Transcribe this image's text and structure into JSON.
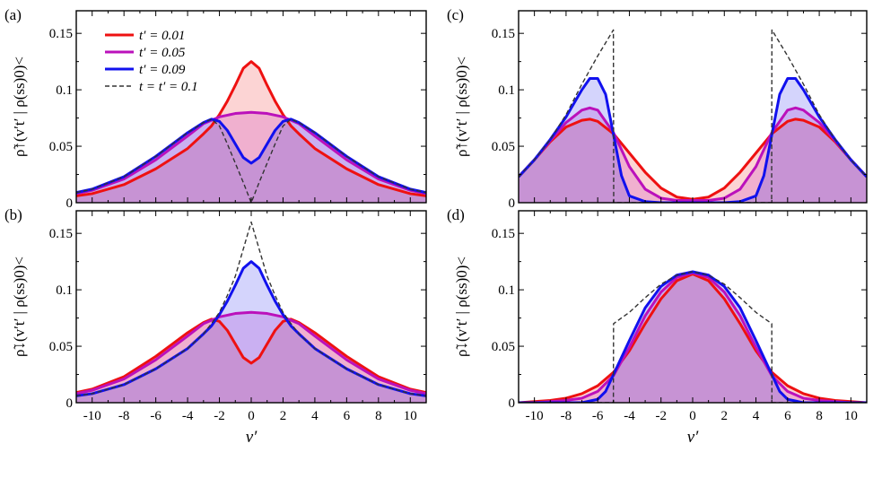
{
  "chart_data": [
    {
      "panel": "(a)",
      "type": "area",
      "ylabel": "ρ̃↑(v′t′ | ρ(ss)0)<",
      "xlabel": "",
      "xlim": [
        -11,
        11
      ],
      "ylim": [
        0,
        0.17
      ],
      "xticks": [],
      "yticks": [
        "0",
        "0.05",
        "0.1",
        "0.15"
      ],
      "legend_placement": "top-left",
      "series": [
        {
          "name": "t′ = 0.01",
          "color": "#ee1111",
          "x": [
            -11,
            -10,
            -8,
            -6,
            -4,
            -3,
            -2.5,
            -2,
            -1.5,
            -1,
            -0.5,
            0,
            0.5,
            1,
            1.5,
            2,
            2.5,
            3,
            4,
            6,
            8,
            10,
            11
          ],
          "y": [
            0.006,
            0.008,
            0.016,
            0.03,
            0.048,
            0.061,
            0.068,
            0.078,
            0.09,
            0.104,
            0.119,
            0.125,
            0.119,
            0.104,
            0.09,
            0.078,
            0.068,
            0.061,
            0.048,
            0.03,
            0.016,
            0.008,
            0.006
          ]
        },
        {
          "name": "t′ = 0.05",
          "color": "#bb11bb",
          "x": [
            -11,
            -10,
            -8,
            -6,
            -4,
            -3,
            -2,
            -1,
            0,
            1,
            2,
            3,
            4,
            6,
            8,
            10,
            11
          ],
          "y": [
            0.008,
            0.011,
            0.021,
            0.038,
            0.059,
            0.07,
            0.076,
            0.079,
            0.08,
            0.079,
            0.076,
            0.07,
            0.059,
            0.038,
            0.021,
            0.011,
            0.008
          ]
        },
        {
          "name": "t′ = 0.09",
          "color": "#1111ee",
          "x": [
            -11,
            -10,
            -8,
            -6,
            -4,
            -3,
            -2.5,
            -2,
            -1.5,
            -1,
            -0.5,
            0,
            0.5,
            1,
            1.5,
            2,
            2.5,
            3,
            4,
            6,
            8,
            10,
            11
          ],
          "y": [
            0.009,
            0.012,
            0.023,
            0.041,
            0.062,
            0.071,
            0.074,
            0.072,
            0.064,
            0.052,
            0.04,
            0.035,
            0.04,
            0.052,
            0.064,
            0.072,
            0.074,
            0.071,
            0.062,
            0.041,
            0.023,
            0.012,
            0.009
          ]
        },
        {
          "name": "t = t′ = 0.1",
          "color": "#333333",
          "dashed": true,
          "x": [
            -11,
            -10,
            -8,
            -6,
            -4,
            -3,
            -2.5,
            -2,
            -1.5,
            -1,
            -0.5,
            0,
            0.5,
            1,
            1.5,
            2,
            2.5,
            3,
            4,
            6,
            8,
            10,
            11
          ],
          "y": [
            0.009,
            0.012,
            0.023,
            0.041,
            0.062,
            0.071,
            0.074,
            0.068,
            0.052,
            0.035,
            0.018,
            0.0,
            0.018,
            0.035,
            0.052,
            0.068,
            0.074,
            0.071,
            0.062,
            0.041,
            0.023,
            0.012,
            0.009
          ]
        }
      ]
    },
    {
      "panel": "(b)",
      "type": "area",
      "ylabel": "ρ̃↓(v′t′ | ρ(ss)0)<",
      "xlabel": "v′",
      "xlim": [
        -11,
        11
      ],
      "ylim": [
        0,
        0.17
      ],
      "xticks": [
        "-10",
        "-8",
        "-6",
        "-4",
        "-2",
        "0",
        "2",
        "4",
        "6",
        "8",
        "10"
      ],
      "yticks": [
        "0",
        "0.05",
        "0.1",
        "0.15"
      ],
      "series": [
        {
          "name": "t′ = 0.01",
          "color": "#ee1111",
          "x": [
            -11,
            -10,
            -8,
            -6,
            -4,
            -3,
            -2.5,
            -2,
            -1.5,
            -1,
            -0.5,
            0,
            0.5,
            1,
            1.5,
            2,
            2.5,
            3,
            4,
            6,
            8,
            10,
            11
          ],
          "y": [
            0.009,
            0.012,
            0.023,
            0.041,
            0.062,
            0.071,
            0.074,
            0.072,
            0.064,
            0.052,
            0.04,
            0.035,
            0.04,
            0.052,
            0.064,
            0.072,
            0.074,
            0.071,
            0.062,
            0.041,
            0.023,
            0.012,
            0.009
          ]
        },
        {
          "name": "t′ = 0.05",
          "color": "#bb11bb",
          "x": [
            -11,
            -10,
            -8,
            -6,
            -4,
            -3,
            -2,
            -1,
            0,
            1,
            2,
            3,
            4,
            6,
            8,
            10,
            11
          ],
          "y": [
            0.008,
            0.011,
            0.021,
            0.038,
            0.059,
            0.07,
            0.076,
            0.079,
            0.08,
            0.079,
            0.076,
            0.07,
            0.059,
            0.038,
            0.021,
            0.011,
            0.008
          ]
        },
        {
          "name": "t′ = 0.09",
          "color": "#1111ee",
          "x": [
            -11,
            -10,
            -8,
            -6,
            -4,
            -3,
            -2.5,
            -2,
            -1.5,
            -1,
            -0.5,
            0,
            0.5,
            1,
            1.5,
            2,
            2.5,
            3,
            4,
            6,
            8,
            10,
            11
          ],
          "y": [
            0.006,
            0.008,
            0.016,
            0.03,
            0.048,
            0.061,
            0.068,
            0.078,
            0.09,
            0.104,
            0.119,
            0.125,
            0.119,
            0.104,
            0.09,
            0.078,
            0.068,
            0.061,
            0.048,
            0.03,
            0.016,
            0.008,
            0.006
          ]
        },
        {
          "name": "t = t′ = 0.1",
          "color": "#333333",
          "dashed": true,
          "x": [
            -11,
            -10,
            -8,
            -6,
            -4,
            -3,
            -2.5,
            -2,
            -1.5,
            -1,
            -0.5,
            0,
            0.5,
            1,
            1.5,
            2,
            2.5,
            3,
            4,
            6,
            8,
            10,
            11
          ],
          "y": [
            0.006,
            0.008,
            0.016,
            0.03,
            0.048,
            0.061,
            0.07,
            0.08,
            0.095,
            0.112,
            0.136,
            0.16,
            0.136,
            0.112,
            0.095,
            0.08,
            0.07,
            0.061,
            0.048,
            0.03,
            0.016,
            0.008,
            0.006
          ]
        }
      ]
    },
    {
      "panel": "(c)",
      "type": "area",
      "ylabel": "ρ̃↑(v′t′ | ρ(ss)0)<",
      "xlabel": "",
      "xlim": [
        -11,
        11
      ],
      "ylim": [
        0,
        0.17
      ],
      "xticks": [],
      "yticks": [
        "0",
        "0.05",
        "0.1",
        "0.15"
      ],
      "series": [
        {
          "name": "t′ = 0.01",
          "color": "#ee1111",
          "x": [
            -11,
            -10,
            -9,
            -8,
            -7,
            -6.5,
            -6,
            -5,
            -4,
            -3,
            -2,
            -1,
            0,
            1,
            2,
            3,
            4,
            5,
            6,
            6.5,
            7,
            8,
            9,
            10,
            11
          ],
          "y": [
            0.023,
            0.038,
            0.054,
            0.067,
            0.073,
            0.074,
            0.072,
            0.061,
            0.044,
            0.027,
            0.013,
            0.005,
            0.003,
            0.005,
            0.013,
            0.027,
            0.044,
            0.061,
            0.072,
            0.074,
            0.073,
            0.067,
            0.054,
            0.038,
            0.023
          ]
        },
        {
          "name": "t′ = 0.05",
          "color": "#bb11bb",
          "x": [
            -11,
            -10,
            -9,
            -8,
            -7,
            -6.5,
            -6,
            -5,
            -4,
            -3,
            -2,
            -1,
            0,
            1,
            2,
            3,
            4,
            5,
            6,
            6.5,
            7,
            8,
            9,
            10,
            11
          ],
          "y": [
            0.023,
            0.038,
            0.055,
            0.071,
            0.082,
            0.084,
            0.082,
            0.062,
            0.032,
            0.012,
            0.004,
            0.002,
            0.002,
            0.002,
            0.004,
            0.012,
            0.032,
            0.062,
            0.082,
            0.084,
            0.082,
            0.071,
            0.055,
            0.038,
            0.023
          ]
        },
        {
          "name": "t′ = 0.09",
          "color": "#1111ee",
          "x": [
            -11,
            -10,
            -9,
            -8,
            -7,
            -6.5,
            -6,
            -5.5,
            -5,
            -4.5,
            -4,
            -3,
            -2,
            0,
            2,
            3,
            4,
            4.5,
            5,
            5.5,
            6,
            6.5,
            7,
            8,
            9,
            10,
            11
          ],
          "y": [
            0.023,
            0.038,
            0.056,
            0.076,
            0.1,
            0.11,
            0.11,
            0.096,
            0.06,
            0.024,
            0.006,
            0.001,
            0.0,
            0.0,
            0.0,
            0.001,
            0.006,
            0.024,
            0.06,
            0.096,
            0.11,
            0.11,
            0.1,
            0.076,
            0.056,
            0.038,
            0.023
          ]
        },
        {
          "name": "t = t′ = 0.1",
          "color": "#333333",
          "dashed": true,
          "x": [
            -11,
            -10,
            -9,
            -8,
            -7,
            -6,
            -5.01,
            -5,
            -4.99,
            4.99,
            5,
            5.01,
            6,
            7,
            8,
            9,
            10,
            11
          ],
          "y": [
            0.023,
            0.038,
            0.056,
            0.078,
            0.105,
            0.13,
            0.153,
            0.08,
            0.0,
            0.0,
            0.08,
            0.153,
            0.13,
            0.105,
            0.078,
            0.056,
            0.038,
            0.023
          ]
        }
      ]
    },
    {
      "panel": "(d)",
      "type": "area",
      "ylabel": "ρ̃↓(v′t′ | ρ(ss)0)<",
      "xlabel": "v′",
      "xlim": [
        -11,
        11
      ],
      "ylim": [
        0,
        0.17
      ],
      "xticks": [
        "-10",
        "-8",
        "-6",
        "-4",
        "-2",
        "0",
        "2",
        "4",
        "6",
        "8",
        "10"
      ],
      "yticks": [
        "0",
        "0.05",
        "0.1",
        "0.15"
      ],
      "series": [
        {
          "name": "t′ = 0.01",
          "color": "#ee1111",
          "x": [
            -11,
            -10,
            -9,
            -8,
            -7,
            -6,
            -5,
            -4,
            -3,
            -2,
            -1,
            0,
            1,
            2,
            3,
            4,
            5,
            6,
            7,
            8,
            9,
            10,
            11
          ],
          "y": [
            0.0,
            0.001,
            0.002,
            0.004,
            0.008,
            0.015,
            0.027,
            0.046,
            0.07,
            0.092,
            0.108,
            0.114,
            0.108,
            0.092,
            0.07,
            0.046,
            0.027,
            0.015,
            0.008,
            0.004,
            0.002,
            0.001,
            0.0
          ]
        },
        {
          "name": "t′ = 0.05",
          "color": "#bb11bb",
          "x": [
            -11,
            -10,
            -9,
            -8,
            -7,
            -6,
            -5,
            -4,
            -3,
            -2,
            -1,
            0,
            1,
            2,
            3,
            4,
            5,
            6,
            7,
            8,
            9,
            10,
            11
          ],
          "y": [
            0.0,
            0.0,
            0.001,
            0.002,
            0.004,
            0.01,
            0.024,
            0.049,
            0.077,
            0.098,
            0.111,
            0.115,
            0.111,
            0.098,
            0.077,
            0.049,
            0.024,
            0.01,
            0.004,
            0.002,
            0.001,
            0.0,
            0.0
          ]
        },
        {
          "name": "t′ = 0.09",
          "color": "#1111ee",
          "x": [
            -11,
            -10,
            -9,
            -8,
            -7,
            -6,
            -5.5,
            -5,
            -4.5,
            -4,
            -3,
            -2,
            -1,
            0,
            1,
            2,
            3,
            4,
            4.5,
            5,
            5.5,
            6,
            7,
            8,
            9,
            10,
            11
          ],
          "y": [
            0.0,
            0.0,
            0.0,
            0.0,
            0.0,
            0.003,
            0.01,
            0.025,
            0.04,
            0.055,
            0.084,
            0.103,
            0.113,
            0.116,
            0.113,
            0.103,
            0.084,
            0.055,
            0.04,
            0.025,
            0.01,
            0.003,
            0.0,
            0.0,
            0.0,
            0.0,
            0.0
          ]
        },
        {
          "name": "t = t′ = 0.1",
          "color": "#333333",
          "dashed": true,
          "x": [
            -11,
            -5.01,
            -5,
            -4,
            -3,
            -2,
            -1,
            0,
            1,
            2,
            3,
            4,
            5,
            5.01,
            11
          ],
          "y": [
            0.0,
            0.0,
            0.07,
            0.08,
            0.093,
            0.105,
            0.113,
            0.116,
            0.113,
            0.105,
            0.093,
            0.08,
            0.07,
            0.0,
            0.0
          ]
        }
      ]
    }
  ]
}
